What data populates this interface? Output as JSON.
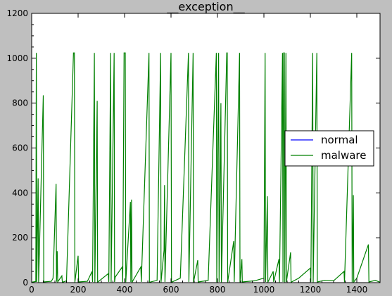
{
  "chart_data": {
    "type": "line",
    "title": "__exception__",
    "xlabel": "",
    "ylabel": "",
    "xlim": [
      0,
      1500
    ],
    "ylim": [
      0,
      1200
    ],
    "x_ticks": [
      0,
      200,
      400,
      600,
      800,
      1000,
      1200,
      1400
    ],
    "y_ticks": [
      0,
      200,
      400,
      600,
      800,
      1000,
      1200
    ],
    "grid": false,
    "legend_position": "center-right",
    "series": [
      {
        "name": "normal",
        "color": "#0000ff",
        "points": [
          [
            0,
            0
          ],
          [
            1500,
            0
          ]
        ]
      },
      {
        "name": "malware",
        "color": "#008000",
        "points": [
          [
            0,
            2
          ],
          [
            18,
            5
          ],
          [
            20,
            1024
          ],
          [
            22,
            3
          ],
          [
            28,
            465
          ],
          [
            30,
            2
          ],
          [
            50,
            835
          ],
          [
            52,
            3
          ],
          [
            85,
            6
          ],
          [
            92,
            20
          ],
          [
            105,
            440
          ],
          [
            107,
            4
          ],
          [
            110,
            140
          ],
          [
            112,
            3
          ],
          [
            130,
            30
          ],
          [
            132,
            2
          ],
          [
            150,
            8
          ],
          [
            180,
            1024
          ],
          [
            184,
            1024
          ],
          [
            186,
            2
          ],
          [
            200,
            120
          ],
          [
            202,
            3
          ],
          [
            240,
            6
          ],
          [
            260,
            50
          ],
          [
            262,
            3
          ],
          [
            270,
            1024
          ],
          [
            272,
            2
          ],
          [
            282,
            810
          ],
          [
            284,
            2
          ],
          [
            330,
            40
          ],
          [
            332,
            3
          ],
          [
            340,
            1024
          ],
          [
            342,
            2
          ],
          [
            355,
            1024
          ],
          [
            357,
            3
          ],
          [
            360,
            25
          ],
          [
            390,
            70
          ],
          [
            392,
            2
          ],
          [
            398,
            1024
          ],
          [
            400,
            1024
          ],
          [
            403,
            1024
          ],
          [
            405,
            2
          ],
          [
            425,
            360
          ],
          [
            427,
            3
          ],
          [
            430,
            370
          ],
          [
            432,
            2
          ],
          [
            470,
            70
          ],
          [
            472,
            3
          ],
          [
            505,
            1024
          ],
          [
            507,
            2
          ],
          [
            540,
            10
          ],
          [
            555,
            1024
          ],
          [
            557,
            2
          ],
          [
            570,
            145
          ],
          [
            572,
            435
          ],
          [
            574,
            3
          ],
          [
            600,
            1024
          ],
          [
            602,
            2
          ],
          [
            640,
            20
          ],
          [
            675,
            1024
          ],
          [
            677,
            3
          ],
          [
            695,
            1024
          ],
          [
            697,
            2
          ],
          [
            715,
            100
          ],
          [
            717,
            3
          ],
          [
            760,
            10
          ],
          [
            795,
            1024
          ],
          [
            797,
            2
          ],
          [
            805,
            1024
          ],
          [
            807,
            3
          ],
          [
            815,
            800
          ],
          [
            817,
            2
          ],
          [
            840,
            1024
          ],
          [
            842,
            1024
          ],
          [
            844,
            2
          ],
          [
            870,
            185
          ],
          [
            872,
            3
          ],
          [
            895,
            1024
          ],
          [
            897,
            2
          ],
          [
            905,
            105
          ],
          [
            907,
            3
          ],
          [
            960,
            8
          ],
          [
            1000,
            20
          ],
          [
            1005,
            1024
          ],
          [
            1007,
            3
          ],
          [
            1015,
            385
          ],
          [
            1017,
            2
          ],
          [
            1040,
            50
          ],
          [
            1042,
            3
          ],
          [
            1065,
            105
          ],
          [
            1067,
            2
          ],
          [
            1080,
            1024
          ],
          [
            1082,
            3
          ],
          [
            1085,
            1024
          ],
          [
            1088,
            1024
          ],
          [
            1090,
            2
          ],
          [
            1095,
            1024
          ],
          [
            1097,
            3
          ],
          [
            1115,
            135
          ],
          [
            1117,
            2
          ],
          [
            1150,
            20
          ],
          [
            1200,
            65
          ],
          [
            1202,
            3
          ],
          [
            1210,
            1024
          ],
          [
            1212,
            2
          ],
          [
            1228,
            1024
          ],
          [
            1230,
            3
          ],
          [
            1260,
            10
          ],
          [
            1300,
            8
          ],
          [
            1345,
            50
          ],
          [
            1347,
            2
          ],
          [
            1378,
            1024
          ],
          [
            1380,
            2
          ],
          [
            1385,
            390
          ],
          [
            1387,
            3
          ],
          [
            1400,
            20
          ],
          [
            1450,
            170
          ],
          [
            1452,
            3
          ],
          [
            1480,
            10
          ],
          [
            1500,
            2
          ]
        ]
      }
    ]
  }
}
